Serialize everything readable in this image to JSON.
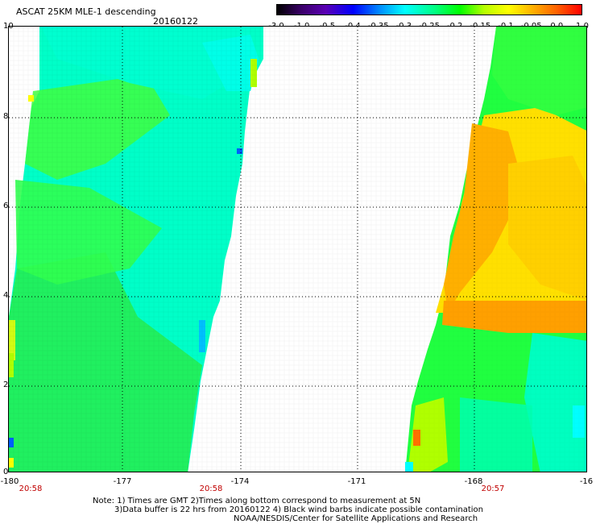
{
  "header": {
    "title": "ASCAT 25KM MLE-1 descending",
    "date": "20160122"
  },
  "colorbar": {
    "ticks": [
      "-3.0",
      "-1.0",
      "-0.5",
      "-0.4",
      "-0.35",
      "-0.3",
      "-0.25",
      "-0.2",
      "-0.15",
      "-0.1",
      "-0.05",
      "0.0",
      "1.0"
    ],
    "colors": [
      "#000000",
      "#5a00b4",
      "#0000ff",
      "#00ffff",
      "#00ff00",
      "#ffff00",
      "#ff6000",
      "#ff0000"
    ]
  },
  "map": {
    "y_labels": [
      "10",
      "8",
      "6",
      "4",
      "2",
      "0"
    ],
    "x_labels": [
      "-180",
      "-177",
      "-174",
      "-171",
      "-168",
      "-16"
    ],
    "time_labels": [
      "20:58",
      "20:58",
      "20:57"
    ],
    "grid": true,
    "swath_colors": {
      "cyan": "#00ffe0",
      "green": "#20ff40",
      "yellow": "#ffff00",
      "orange": "#ffb000",
      "blue": "#0080ff"
    }
  },
  "notes": {
    "line1": "Note: 1) Times are GMT 2)Times along bottom correspond to measurement at 5N",
    "line2": "3)Data buffer is 22 hrs from 20160122 4) Black wind barbs indicate possible contamination",
    "line3": "NOAA/NESDIS/Center for Satellite Applications and Research"
  }
}
